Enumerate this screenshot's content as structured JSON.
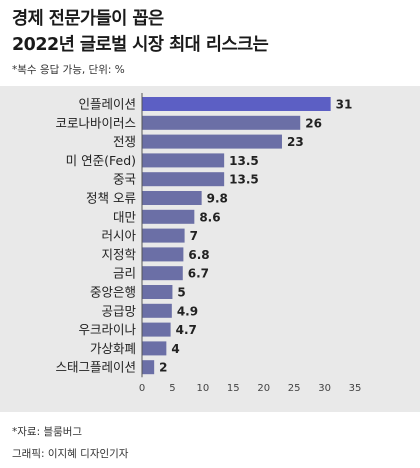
{
  "header": {
    "title_line1": "경제 전문가들이 꼽은",
    "title_line2": "2022년 글로벌 시장 최대 리스크는",
    "subtitle": "*복수 응답 가능, 단위: %"
  },
  "footer": {
    "source": "*자료: 블룸버그",
    "credit": "그래픽: 이지혜 디자인기자"
  },
  "colors": {
    "bar": "#6b6fa6",
    "bar_highlight": "#5c5fc4",
    "panel": "#e9e9e9"
  },
  "chart_data": {
    "type": "bar",
    "orientation": "horizontal",
    "title": "경제 전문가들이 꼽은 2022년 글로벌 시장 최대 리스크는",
    "subtitle": "*복수 응답 가능, 단위: %",
    "categories": [
      "인플레이션",
      "코로나바이러스",
      "전쟁",
      "미 연준(Fed)",
      "중국",
      "정책 오류",
      "대만",
      "러시아",
      "지정학",
      "금리",
      "중앙은행",
      "공급망",
      "우크라이나",
      "가상화폐",
      "스태그플레이션"
    ],
    "values": [
      31,
      26,
      23,
      13.5,
      13.5,
      9.8,
      8.6,
      7,
      6.8,
      6.7,
      5,
      4.9,
      4.7,
      4,
      2
    ],
    "value_labels": [
      "31",
      "26",
      "23",
      "13.5",
      "13.5",
      "9.8",
      "8.6",
      "7",
      "6.8",
      "6.7",
      "5",
      "4.9",
      "4.7",
      "4",
      "2"
    ],
    "xticks": [
      "0",
      "5",
      "10",
      "15",
      "20",
      "25",
      "30",
      "35"
    ],
    "xlim": [
      0,
      35
    ],
    "grid": false,
    "legend": "none"
  }
}
